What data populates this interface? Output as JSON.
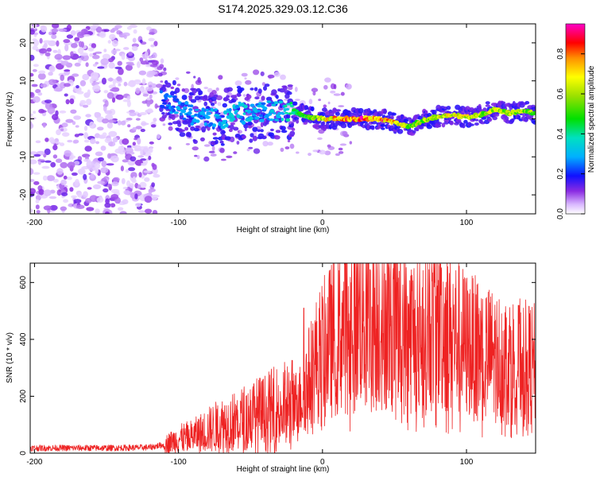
{
  "figure_title": "S174.2025.329.03.12.C36",
  "chart_data": [
    {
      "type": "heatmap",
      "name": "spectrogram",
      "xlabel": "Height of straight line (km)",
      "ylabel": "Frequency (Hz)",
      "xlim": [
        -203,
        148
      ],
      "ylim": [
        -25,
        25
      ],
      "xticks": [
        -200,
        -100,
        0,
        100
      ],
      "yticks": [
        -20,
        -10,
        0,
        10,
        20
      ],
      "colorbar": {
        "label": "Normalized spectral amplitude",
        "range": [
          0,
          0.95
        ],
        "ticks": [
          0.0,
          0.2,
          0.4,
          0.6,
          0.8
        ],
        "tick_labels": [
          "0.0",
          "0.2",
          "0.4",
          "0.6",
          "0.8"
        ]
      },
      "noise_region_km": [
        -203,
        -115
      ],
      "ridge": {
        "x": [
          -112,
          -100,
          -90,
          -80,
          -70,
          -60,
          -50,
          -40,
          -30,
          -20,
          -10,
          0,
          10,
          20,
          30,
          40,
          50,
          55,
          60,
          70,
          80,
          90,
          100,
          110,
          120,
          130,
          140,
          148
        ],
        "y": [
          5,
          3,
          1,
          0,
          0,
          2,
          1,
          2,
          2,
          2,
          0.5,
          0,
          0,
          0,
          0,
          0,
          -1,
          -1.5,
          -2,
          -0.5,
          0.5,
          1,
          0.5,
          1,
          2.5,
          1.5,
          2,
          1.5
        ],
        "amp": [
          0.25,
          0.3,
          0.3,
          0.3,
          0.35,
          0.35,
          0.35,
          0.3,
          0.35,
          0.45,
          0.55,
          0.7,
          0.85,
          0.9,
          0.92,
          0.9,
          0.8,
          0.7,
          0.6,
          0.65,
          0.7,
          0.75,
          0.7,
          0.65,
          0.7,
          0.7,
          0.65,
          0.6
        ]
      }
    },
    {
      "type": "line",
      "name": "snr",
      "xlabel": "Height of straight line (km)",
      "ylabel": "SNR (10 * v/v)",
      "xlim": [
        -203,
        148
      ],
      "ylim": [
        0,
        668
      ],
      "xticks": [
        -200,
        -100,
        0,
        100
      ],
      "yticks": [
        0,
        200,
        400,
        600
      ],
      "color": "#ee2222",
      "envelope": {
        "x": [
          -203,
          -150,
          -120,
          -110,
          -100,
          -90,
          -80,
          -70,
          -60,
          -50,
          -40,
          -30,
          -20,
          -15,
          -10,
          -5,
          0,
          10,
          20,
          30,
          40,
          50,
          60,
          70,
          80,
          90,
          100,
          110,
          120,
          130,
          140,
          148
        ],
        "y": [
          18,
          18,
          20,
          30,
          50,
          60,
          80,
          100,
          110,
          130,
          140,
          160,
          170,
          190,
          260,
          320,
          360,
          420,
          480,
          500,
          490,
          460,
          420,
          440,
          460,
          420,
          380,
          360,
          340,
          330,
          320,
          310
        ]
      },
      "peaks": [
        {
          "x": 33,
          "y": 645
        },
        {
          "x": 82,
          "y": 665
        },
        {
          "x": 52,
          "y": 600
        },
        {
          "x": 78,
          "y": 600
        },
        {
          "x": 136,
          "y": 520
        },
        {
          "x": -13,
          "y": 510
        }
      ]
    }
  ]
}
